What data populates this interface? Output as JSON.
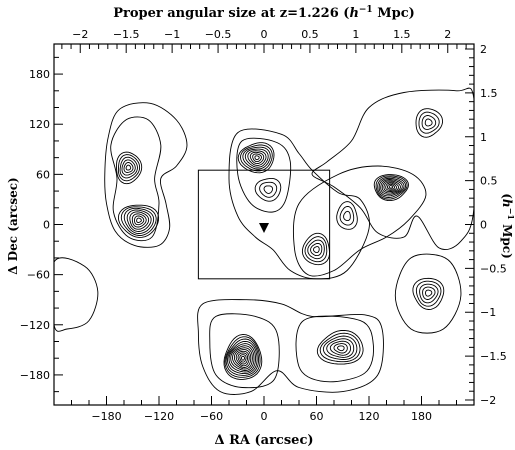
{
  "chart_data": {
    "type": "contour",
    "title_main": "Proper angular size at z=1.226 (",
    "title_unit": "h",
    "title_exp": "−1",
    "title_tail": " Mpc)",
    "xlabel": "Δ RA (arcsec)",
    "ylabel": "Δ Dec (arcsec)",
    "y2label_open": "(",
    "y2label_unit": "h",
    "y2label_exp": "−1",
    "y2label_tail": " Mpc)",
    "xlim": [
      -240,
      240
    ],
    "ylim": [
      -216,
      216
    ],
    "x_ticks": [
      -180,
      -120,
      -60,
      0,
      60,
      120,
      180
    ],
    "x_tick_labels": [
      "−180",
      "−120",
      "−60",
      "0",
      "60",
      "120",
      "180"
    ],
    "y_ticks": [
      -180,
      -120,
      -60,
      0,
      60,
      120,
      180
    ],
    "y_tick_labels": [
      "−180",
      "−120",
      "−60",
      "0",
      "60",
      "120",
      "180"
    ],
    "top_ticks": [
      -2,
      -1.5,
      -1,
      -0.5,
      0,
      0.5,
      1,
      1.5,
      2
    ],
    "top_tick_labels": [
      "−2",
      "−1.5",
      "−1",
      "−0.5",
      "0",
      "0.5",
      "1",
      "1.5",
      "2"
    ],
    "right_ticks": [
      -2,
      -1.5,
      -1,
      -0.5,
      0,
      0.5,
      1,
      1.5,
      2
    ],
    "right_tick_labels": [
      "−2",
      "−1.5",
      "−1",
      "−0.5",
      "0",
      "0.5",
      "1",
      "1.5",
      "2"
    ],
    "arcsec_per_mpc": 105,
    "box": {
      "x0": -75,
      "x1": 75,
      "y0": -65,
      "y1": 65
    },
    "marker": {
      "x": 0,
      "y": -3,
      "shape": "triangle-down"
    },
    "peaks": [
      {
        "x": -155,
        "y": 68,
        "rx": 15,
        "ry": 18,
        "levels": 6
      },
      {
        "x": -143,
        "y": 5,
        "rx": 22,
        "ry": 20,
        "levels": 8
      },
      {
        "x": -8,
        "y": 80,
        "rx": 20,
        "ry": 18,
        "levels": 8
      },
      {
        "x": 5,
        "y": 42,
        "rx": 14,
        "ry": 14,
        "levels": 3
      },
      {
        "x": 60,
        "y": -30,
        "rx": 16,
        "ry": 18,
        "levels": 5
      },
      {
        "x": 95,
        "y": 10,
        "rx": 12,
        "ry": 16,
        "levels": 3
      },
      {
        "x": 145,
        "y": 45,
        "rx": 20,
        "ry": 15,
        "levels": 10
      },
      {
        "x": 188,
        "y": 122,
        "rx": 15,
        "ry": 17,
        "levels": 4
      },
      {
        "x": 188,
        "y": -82,
        "rx": 18,
        "ry": 18,
        "levels": 5
      },
      {
        "x": -24,
        "y": -160,
        "rx": 22,
        "ry": 26,
        "levels": 12
      },
      {
        "x": 88,
        "y": -148,
        "rx": 26,
        "ry": 20,
        "levels": 7
      }
    ]
  }
}
